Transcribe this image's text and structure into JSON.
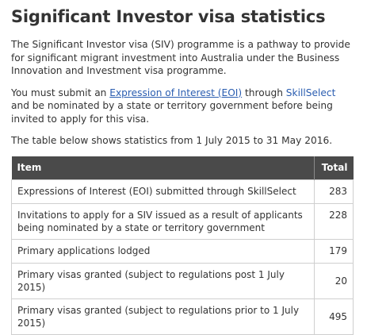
{
  "title": "Significant Investor visa statistics",
  "intro": "The Significant Investor visa (SIV) programme is a pathway to provide for significant migrant investment into Australia under the Business Innovation and Investment visa programme.",
  "eoi_para": {
    "prefix": "You must submit an ",
    "link1": "Expression of Interest (EOI)",
    "middle": " through ",
    "link2": "SkillSelect",
    "suffix": " and be nominated by a state or territory government before being invited to apply for this visa."
  },
  "table_intro": "The table below shows statistics from 1 July 2015 to 31 May 2016.",
  "table": {
    "headers": {
      "item": "Item",
      "total": "Total"
    },
    "rows": [
      {
        "item": "Expressions of Interest (EOI) submitted through SkillSelect",
        "total": "283"
      },
      {
        "item": "Invitations to apply for a SIV issued as a result of applicants being nominated by a state or territory government",
        "total": "228"
      },
      {
        "item": "Primary applications lodged",
        "total": "179"
      },
      {
        "item": "Primary visas granted (subject to regulations post 1 July 2015)",
        "total": "20"
      },
      {
        "item": "Primary visas granted (subject to regulations prior to 1 July 2015)",
        "total": "495"
      }
    ]
  },
  "colors": {
    "header_bg": "#4a4a4a",
    "link": "#2a5db0",
    "text": "#333333",
    "border": "#cfcfcf"
  }
}
